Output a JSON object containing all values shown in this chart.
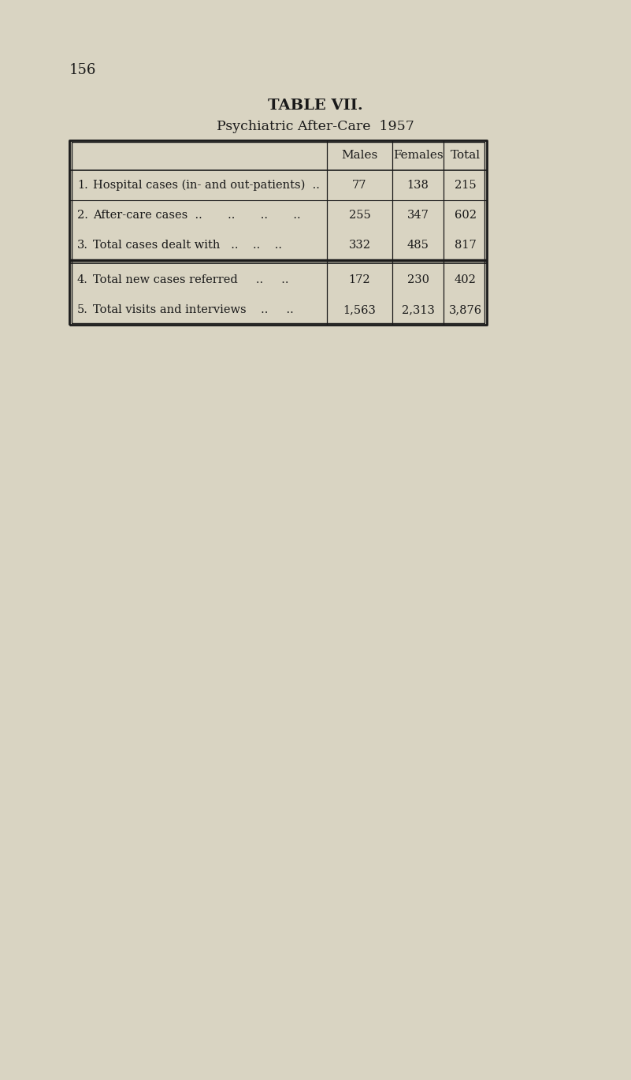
{
  "page_number": "156",
  "title_line1": "TABLE VII.",
  "title_line2": "Psychiatric After-Care  1957",
  "bg_color": "#d9d4c2",
  "page_color": "#ccc8b5",
  "text_color": "#1a1a1a",
  "col_headers": [
    "Males",
    "Females",
    "Total"
  ],
  "rows": [
    {
      "num": "1.",
      "label": "Hospital cases (in- and out-patients)  ..",
      "males": "77",
      "females": "138",
      "total": "215"
    },
    {
      "num": "2.",
      "label": "After-care cases  ..       ..       ..       ..",
      "males": "255",
      "females": "347",
      "total": "602"
    },
    {
      "num": "3.",
      "label": "Total cases dealt with   ..    ..    ..",
      "males": "332",
      "females": "485",
      "total": "817"
    },
    {
      "num": "4.",
      "label": "Total new cases referred     ..     ..",
      "males": "172",
      "females": "230",
      "total": "402"
    },
    {
      "num": "5.",
      "label": "Total visits and interviews    ..     ..",
      "males": "1,563",
      "females": "2,313",
      "total": "3,876"
    }
  ]
}
